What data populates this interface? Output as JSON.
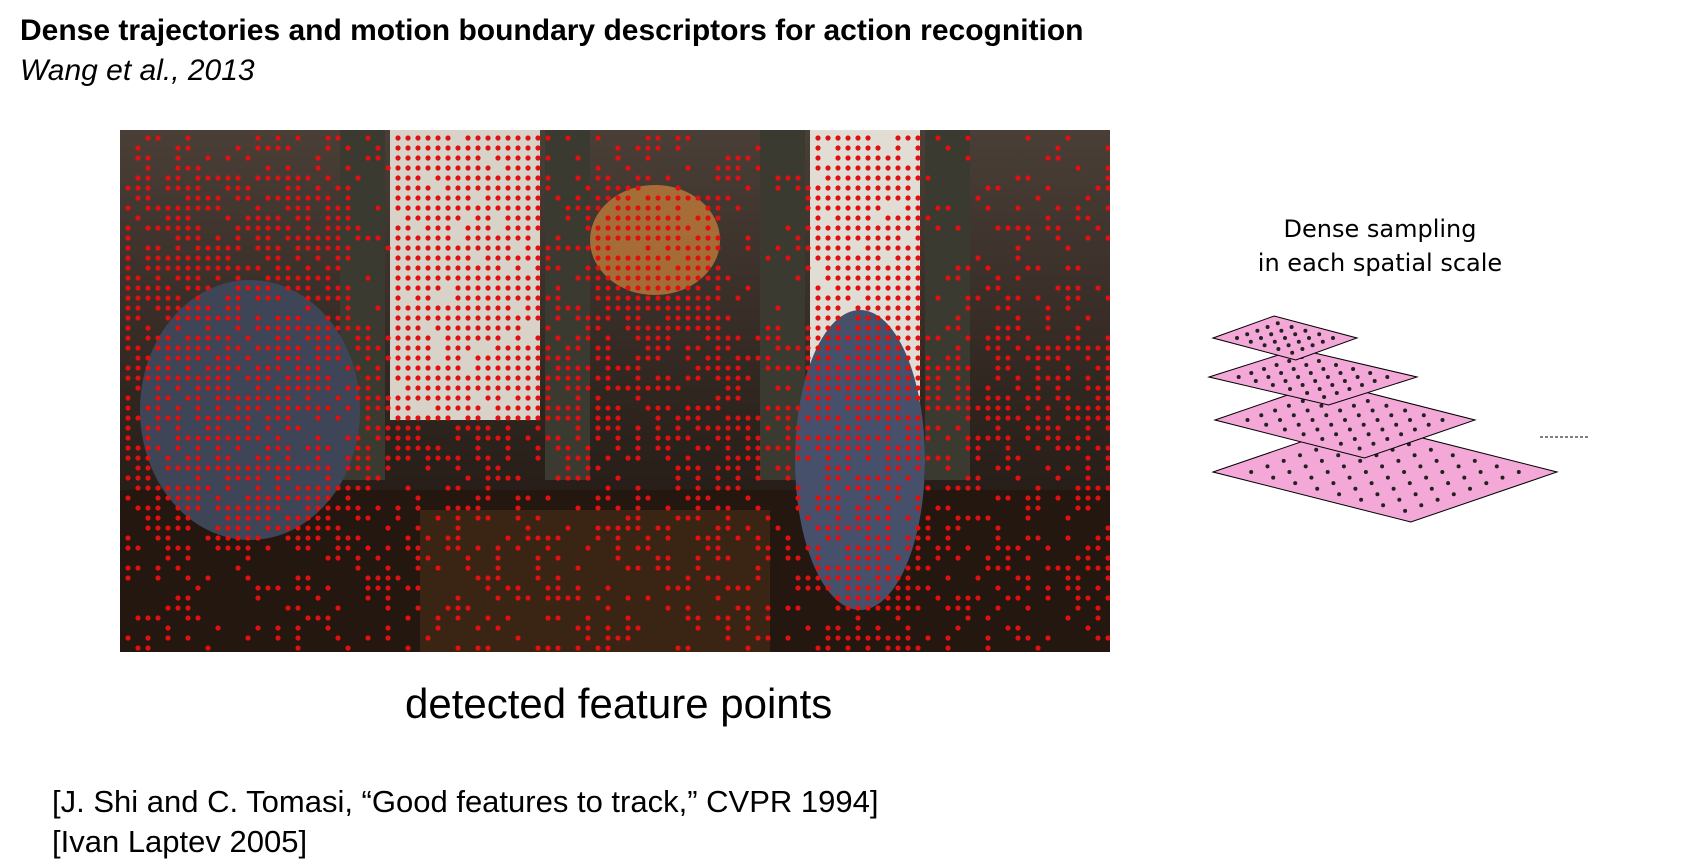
{
  "slide": {
    "title": "Dense trajectories and motion boundary descriptors for action recognition",
    "subtitle": "Wang et al., 2013"
  },
  "figure": {
    "caption": "detected feature points",
    "marker_color": "#e01010"
  },
  "pyramid": {
    "caption_line1": "Dense sampling",
    "caption_line2": "in each spatial scale",
    "fill_color": "#f4a8d8"
  },
  "references": [
    "[J. Shi and C. Tomasi, “Good features to track,” CVPR 1994]",
    "[Ivan Laptev 2005]"
  ]
}
